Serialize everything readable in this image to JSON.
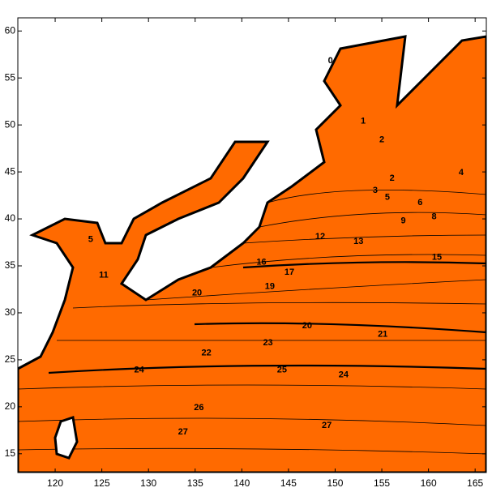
{
  "map": {
    "xlim": [
      116,
      166.2
    ],
    "ylim": [
      13,
      61.4
    ],
    "xticks": [
      120,
      125,
      130,
      135,
      140,
      145,
      150,
      155,
      160,
      165
    ],
    "yticks": [
      15,
      20,
      25,
      30,
      35,
      40,
      45,
      50,
      55,
      60
    ],
    "contour_labels": [
      {
        "value": 0,
        "lon": 149.5,
        "lat": 56.8
      },
      {
        "value": 1,
        "lon": 153,
        "lat": 50.4
      },
      {
        "value": 2,
        "lon": 155,
        "lat": 48.4
      },
      {
        "value": 2,
        "lon": 156.1,
        "lat": 44.3
      },
      {
        "value": 4,
        "lon": 163.5,
        "lat": 44.9
      },
      {
        "value": 3,
        "lon": 154.3,
        "lat": 43.0
      },
      {
        "value": 5,
        "lon": 155.6,
        "lat": 42.3
      },
      {
        "value": 6,
        "lon": 159.1,
        "lat": 41.7
      },
      {
        "value": 8,
        "lon": 160.6,
        "lat": 40.2
      },
      {
        "value": 9,
        "lon": 157.3,
        "lat": 39.8
      },
      {
        "value": 5,
        "lon": 123.8,
        "lat": 37.8
      },
      {
        "value": 12,
        "lon": 148.4,
        "lat": 38.1
      },
      {
        "value": 13,
        "lon": 152.5,
        "lat": 37.6
      },
      {
        "value": 15,
        "lon": 160.9,
        "lat": 35.9
      },
      {
        "value": 16,
        "lon": 142.1,
        "lat": 35.4
      },
      {
        "value": 11,
        "lon": 125.2,
        "lat": 34.0
      },
      {
        "value": 17,
        "lon": 145.1,
        "lat": 34.3
      },
      {
        "value": 19,
        "lon": 143.0,
        "lat": 32.8
      },
      {
        "value": 20,
        "lon": 135.2,
        "lat": 32.1
      },
      {
        "value": 20,
        "lon": 147,
        "lat": 28.6
      },
      {
        "value": 21,
        "lon": 155.1,
        "lat": 27.7
      },
      {
        "value": 23,
        "lon": 142.8,
        "lat": 26.8
      },
      {
        "value": 22,
        "lon": 136.2,
        "lat": 25.7
      },
      {
        "value": 24,
        "lon": 129,
        "lat": 23.9
      },
      {
        "value": 25,
        "lon": 144.3,
        "lat": 23.9
      },
      {
        "value": 24,
        "lon": 150.9,
        "lat": 23.4
      },
      {
        "value": 26,
        "lon": 135.4,
        "lat": 19.9
      },
      {
        "value": 27,
        "lon": 133.7,
        "lat": 17.3
      },
      {
        "value": 27,
        "lon": 149.1,
        "lat": 18.0
      }
    ]
  }
}
